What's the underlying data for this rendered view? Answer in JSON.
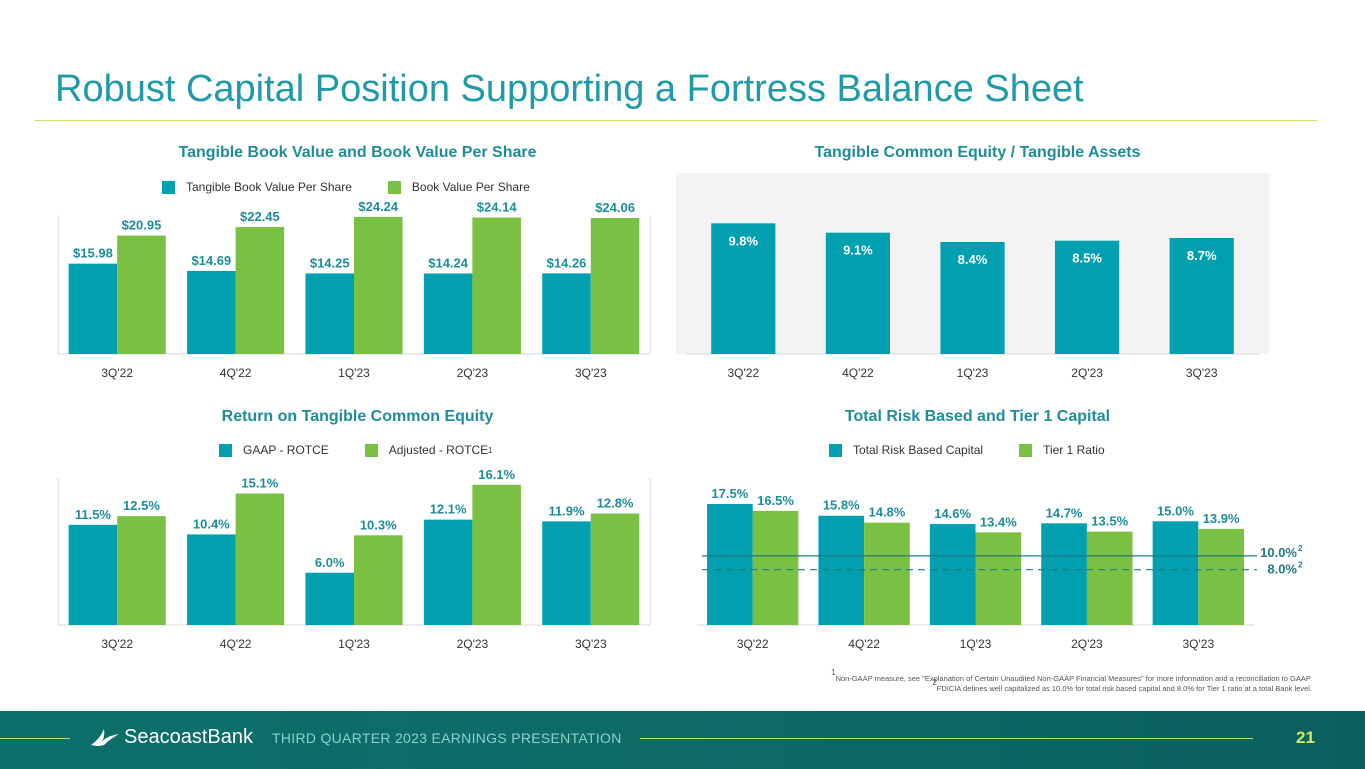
{
  "page_title": "Robust Capital Position Supporting a Fortress Balance Sheet",
  "colors": {
    "teal": "#00a0b0",
    "green": "#7ac143",
    "title_teal": "#1f9aa8",
    "label_teal": "#1e8d99"
  },
  "chart_data": [
    {
      "type": "bar",
      "title": "Tangible Book Value and Book Value Per Share",
      "categories": [
        "3Q'22",
        "4Q'22",
        "1Q'23",
        "2Q'23",
        "3Q'23"
      ],
      "series": [
        {
          "name": "Tangible Book Value Per Share",
          "values": [
            15.98,
            14.69,
            14.25,
            14.24,
            14.26
          ],
          "labels": [
            "$15.98",
            "$14.69",
            "$14.25",
            "$14.24",
            "$14.26"
          ]
        },
        {
          "name": "Book Value Per Share",
          "values": [
            20.95,
            22.45,
            24.24,
            24.14,
            24.06
          ],
          "labels": [
            "$20.95",
            "$22.45",
            "$24.24",
            "$24.14",
            "$24.06"
          ]
        }
      ],
      "ylim": [
        0,
        26
      ]
    },
    {
      "type": "bar",
      "title": "Tangible Common Equity / Tangible Assets",
      "categories": [
        "3Q'22",
        "4Q'22",
        "1Q'23",
        "2Q'23",
        "3Q'23"
      ],
      "series": [
        {
          "name": "Tangible Common Equity / Tangible Assets",
          "values": [
            9.8,
            9.1,
            8.4,
            8.5,
            8.7
          ],
          "labels": [
            "9.8%",
            "9.1%",
            "8.4%",
            "8.5%",
            "8.7%"
          ]
        }
      ],
      "ylim": [
        0,
        10.8
      ]
    },
    {
      "type": "bar",
      "title": "Return on Tangible Common Equity",
      "categories": [
        "3Q'22",
        "4Q'22",
        "1Q'23",
        "2Q'23",
        "3Q'23"
      ],
      "series": [
        {
          "name": "GAAP - ROTCE",
          "values": [
            11.5,
            10.4,
            6.0,
            12.1,
            11.9
          ],
          "labels": [
            "11.5%",
            "10.4%",
            "6.0%",
            "12.1%",
            "11.9%"
          ]
        },
        {
          "name": "Adjusted - ROTCE",
          "values": [
            12.5,
            15.1,
            10.3,
            16.1,
            12.8
          ],
          "labels": [
            "12.5%",
            "15.1%",
            "10.3%",
            "16.1%",
            "12.8%"
          ]
        }
      ],
      "legend_footnote": "1",
      "ylim": [
        0,
        17.8
      ]
    },
    {
      "type": "bar",
      "title": "Total Risk Based and Tier 1 Capital",
      "categories": [
        "3Q'22",
        "4Q'22",
        "1Q'23",
        "2Q'23",
        "3Q'23"
      ],
      "series": [
        {
          "name": "Total Risk Based Capital",
          "values": [
            17.5,
            15.8,
            14.6,
            14.7,
            15.0
          ],
          "labels": [
            "17.5%",
            "15.8%",
            "14.6%",
            "14.7%",
            "15.0%"
          ]
        },
        {
          "name": "Tier 1 Ratio",
          "values": [
            16.5,
            14.8,
            13.4,
            13.5,
            13.9
          ],
          "labels": [
            "16.5%",
            "14.8%",
            "13.4%",
            "13.5%",
            "13.9%"
          ]
        }
      ],
      "reference_lines": [
        {
          "value": 10.0,
          "label": "10.0%",
          "footnote": "2",
          "style": "solid"
        },
        {
          "value": 8.0,
          "label": "8.0%",
          "footnote": "2",
          "style": "dashed"
        }
      ],
      "ylim": [
        0,
        18.8
      ]
    }
  ],
  "footnotes": [
    {
      "num": "1",
      "text": "Non-GAAP measure, see \"Explanation of Certain Unaudited Non-GAAP Financial Measures\" for more information and a reconciliation to GAAP."
    },
    {
      "num": "2",
      "text": "FDICIA defines well capitalized as 10.0% for total risk based capital and 8.0% for Tier 1 ratio at a total Bank level."
    }
  ],
  "footer": {
    "brand": "SeacoastBank",
    "presentation": "THIRD QUARTER 2023 EARNINGS PRESENTATION",
    "page_number": "21"
  }
}
